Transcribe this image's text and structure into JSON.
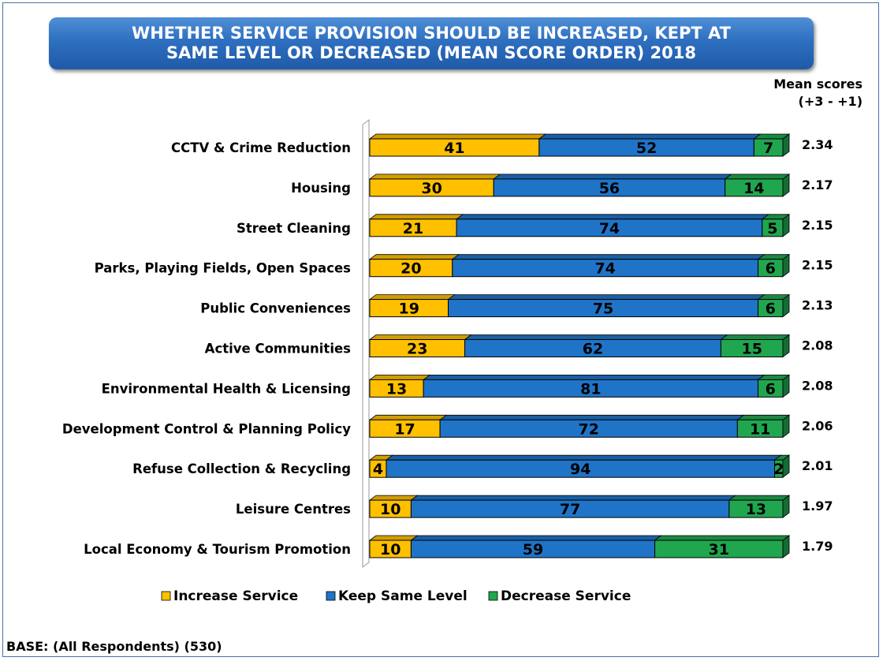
{
  "title_line1": "WHETHER SERVICE PROVISION SHOULD BE INCREASED, KEPT AT",
  "title_line2": "SAME LEVEL OR DECREASED (MEAN SCORE ORDER) 2018",
  "mean_header_line1": "Mean scores",
  "mean_header_line2": "(+3 - +1)",
  "base_note": "BASE: (All Respondents) (530)",
  "colors": {
    "increase": "#ffc000",
    "keep": "#1f74c8",
    "decrease": "#21a650",
    "title_bg": "#2e6fc0"
  },
  "chart_data": {
    "type": "bar",
    "orientation": "horizontal",
    "stacked": true,
    "categories": [
      "CCTV & Crime Reduction",
      "Housing",
      "Street Cleaning",
      "Parks, Playing Fields, Open Spaces",
      "Public Conveniences",
      "Active Communities",
      "Environmental Health & Licensing",
      "Development Control & Planning Policy",
      "Refuse Collection & Recycling",
      "Leisure Centres",
      "Local Economy & Tourism Promotion"
    ],
    "series": [
      {
        "name": "Increase Service",
        "values": [
          41,
          30,
          21,
          20,
          19,
          23,
          13,
          17,
          4,
          10,
          10
        ]
      },
      {
        "name": "Keep Same Level",
        "values": [
          52,
          56,
          74,
          74,
          75,
          62,
          81,
          72,
          94,
          77,
          59
        ]
      },
      {
        "name": "Decrease Service",
        "values": [
          7,
          14,
          5,
          6,
          6,
          15,
          6,
          11,
          2,
          13,
          31
        ]
      }
    ],
    "mean_scores": [
      "2.34",
      "2.17",
      "2.15",
      "2.15",
      "2.13",
      "2.08",
      "2.08",
      "2.06",
      "2.01",
      "1.97",
      "1.79"
    ],
    "xlim": [
      0,
      100
    ],
    "legend_position": "bottom",
    "grid": false
  }
}
